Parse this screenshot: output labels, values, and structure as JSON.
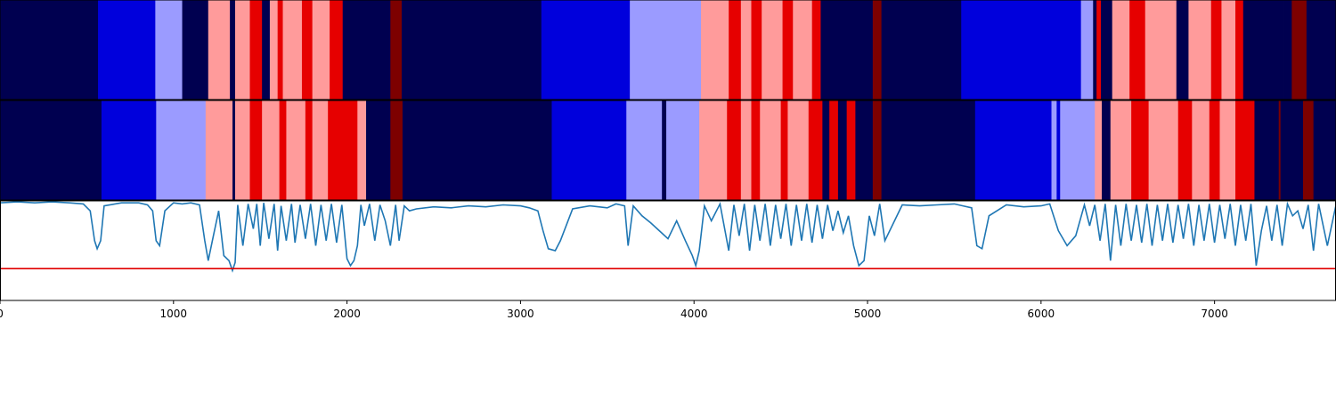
{
  "chart_data": {
    "type": "heatmap",
    "title": "",
    "xlabel": "",
    "ylabel": "",
    "xlim": [
      0,
      7700
    ],
    "xticks": [
      "0",
      "1000",
      "2000",
      "3000",
      "4000",
      "5000",
      "6000",
      "7000"
    ],
    "xtick_values": [
      0,
      1000,
      2000,
      3000,
      4000,
      5000,
      6000,
      7000
    ],
    "palette": [
      "#000050",
      "#0000dc",
      "#9b9bff",
      "#ff9b9b",
      "#e60000",
      "#7d0000"
    ],
    "tracks": [
      {
        "segments": [
          [
            0,
            565,
            0
          ],
          [
            565,
            895,
            1
          ],
          [
            895,
            1050,
            2
          ],
          [
            1050,
            1200,
            0
          ],
          [
            1200,
            1325,
            3
          ],
          [
            1325,
            1355,
            0
          ],
          [
            1355,
            1440,
            3
          ],
          [
            1440,
            1510,
            4
          ],
          [
            1510,
            1555,
            0
          ],
          [
            1555,
            1600,
            3
          ],
          [
            1600,
            1630,
            4
          ],
          [
            1630,
            1740,
            3
          ],
          [
            1740,
            1800,
            4
          ],
          [
            1800,
            1900,
            3
          ],
          [
            1900,
            1975,
            4
          ],
          [
            1975,
            2250,
            0
          ],
          [
            2250,
            2315,
            5
          ],
          [
            2315,
            3120,
            0
          ],
          [
            3120,
            3630,
            1
          ],
          [
            3630,
            4040,
            2
          ],
          [
            4040,
            4200,
            3
          ],
          [
            4200,
            4270,
            4
          ],
          [
            4270,
            4330,
            3
          ],
          [
            4330,
            4390,
            4
          ],
          [
            4390,
            4510,
            3
          ],
          [
            4510,
            4570,
            4
          ],
          [
            4570,
            4680,
            3
          ],
          [
            4680,
            4730,
            4
          ],
          [
            4730,
            5030,
            0
          ],
          [
            5030,
            5080,
            5
          ],
          [
            5080,
            5540,
            0
          ],
          [
            5540,
            6230,
            1
          ],
          [
            6230,
            6300,
            2
          ],
          [
            6300,
            6320,
            0
          ],
          [
            6320,
            6345,
            4
          ],
          [
            6345,
            6410,
            0
          ],
          [
            6410,
            6510,
            3
          ],
          [
            6510,
            6600,
            4
          ],
          [
            6600,
            6780,
            3
          ],
          [
            6780,
            6850,
            0
          ],
          [
            6850,
            6980,
            3
          ],
          [
            6980,
            7040,
            4
          ],
          [
            7040,
            7120,
            3
          ],
          [
            7120,
            7165,
            4
          ],
          [
            7165,
            7350,
            0
          ],
          [
            7350,
            7400,
            0
          ],
          [
            7400,
            7445,
            0
          ],
          [
            7445,
            7530,
            5
          ],
          [
            7530,
            7700,
            0
          ]
        ]
      },
      {
        "segments": [
          [
            0,
            585,
            0
          ],
          [
            585,
            900,
            1
          ],
          [
            900,
            1185,
            2
          ],
          [
            1185,
            1340,
            3
          ],
          [
            1340,
            1355,
            0
          ],
          [
            1355,
            1440,
            3
          ],
          [
            1440,
            1510,
            4
          ],
          [
            1510,
            1610,
            3
          ],
          [
            1610,
            1650,
            4
          ],
          [
            1650,
            1760,
            3
          ],
          [
            1760,
            1800,
            4
          ],
          [
            1800,
            1890,
            3
          ],
          [
            1890,
            2060,
            4
          ],
          [
            2060,
            2110,
            3
          ],
          [
            2110,
            2250,
            0
          ],
          [
            2250,
            2320,
            5
          ],
          [
            2320,
            3180,
            0
          ],
          [
            3180,
            3610,
            1
          ],
          [
            3610,
            3815,
            2
          ],
          [
            3815,
            3840,
            0
          ],
          [
            3840,
            4030,
            2
          ],
          [
            4030,
            4190,
            3
          ],
          [
            4190,
            4270,
            4
          ],
          [
            4270,
            4330,
            3
          ],
          [
            4330,
            4380,
            4
          ],
          [
            4380,
            4500,
            3
          ],
          [
            4500,
            4540,
            4
          ],
          [
            4540,
            4660,
            3
          ],
          [
            4660,
            4740,
            4
          ],
          [
            4740,
            4780,
            0
          ],
          [
            4780,
            4830,
            4
          ],
          [
            4830,
            4880,
            0
          ],
          [
            4880,
            4930,
            4
          ],
          [
            4930,
            5030,
            0
          ],
          [
            5030,
            5080,
            5
          ],
          [
            5080,
            5620,
            0
          ],
          [
            5620,
            6060,
            1
          ],
          [
            6060,
            6090,
            2
          ],
          [
            6090,
            6110,
            1
          ],
          [
            6110,
            6310,
            2
          ],
          [
            6310,
            6350,
            3
          ],
          [
            6350,
            6400,
            0
          ],
          [
            6400,
            6520,
            3
          ],
          [
            6520,
            6620,
            4
          ],
          [
            6620,
            6790,
            3
          ],
          [
            6790,
            6870,
            4
          ],
          [
            6870,
            6970,
            3
          ],
          [
            6970,
            7030,
            4
          ],
          [
            7030,
            7120,
            3
          ],
          [
            7120,
            7170,
            4
          ],
          [
            7170,
            7230,
            4
          ],
          [
            7230,
            7370,
            0
          ],
          [
            7370,
            7380,
            5
          ],
          [
            7380,
            7510,
            0
          ],
          [
            7510,
            7570,
            5
          ],
          [
            7570,
            7700,
            0
          ]
        ]
      }
    ],
    "line_series": {
      "color": "#1f77b4",
      "ylim": [
        0,
        1
      ],
      "x": [
        0,
        100,
        200,
        300,
        400,
        480,
        520,
        545,
        560,
        580,
        600,
        700,
        800,
        850,
        880,
        900,
        920,
        950,
        1000,
        1050,
        1100,
        1150,
        1180,
        1200,
        1230,
        1260,
        1290,
        1320,
        1340,
        1355,
        1370,
        1400,
        1430,
        1460,
        1480,
        1500,
        1520,
        1550,
        1580,
        1600,
        1620,
        1650,
        1680,
        1700,
        1730,
        1760,
        1790,
        1820,
        1850,
        1880,
        1910,
        1940,
        1970,
        2000,
        2020,
        2040,
        2060,
        2080,
        2100,
        2130,
        2160,
        2190,
        2220,
        2250,
        2280,
        2300,
        2330,
        2360,
        2400,
        2500,
        2600,
        2700,
        2800,
        2900,
        3000,
        3050,
        3100,
        3130,
        3160,
        3200,
        3230,
        3300,
        3400,
        3500,
        3550,
        3600,
        3620,
        3650,
        3700,
        3750,
        3800,
        3850,
        3900,
        3950,
        3990,
        4010,
        4030,
        4060,
        4100,
        4150,
        4200,
        4230,
        4260,
        4290,
        4320,
        4350,
        4380,
        4410,
        4440,
        4470,
        4500,
        4530,
        4560,
        4590,
        4620,
        4650,
        4680,
        4710,
        4740,
        4770,
        4800,
        4830,
        4860,
        4890,
        4920,
        4950,
        4980,
        5010,
        5040,
        5070,
        5100,
        5200,
        5300,
        5400,
        5500,
        5550,
        5600,
        5630,
        5660,
        5700,
        5800,
        5900,
        6000,
        6050,
        6100,
        6150,
        6200,
        6250,
        6280,
        6310,
        6340,
        6370,
        6400,
        6430,
        6460,
        6490,
        6520,
        6550,
        6580,
        6610,
        6640,
        6670,
        6700,
        6730,
        6760,
        6790,
        6820,
        6850,
        6880,
        6910,
        6940,
        6970,
        7000,
        7030,
        7060,
        7090,
        7120,
        7150,
        7180,
        7210,
        7240,
        7270,
        7300,
        7330,
        7360,
        7390,
        7420,
        7450,
        7480,
        7510,
        7540,
        7570,
        7600,
        7650,
        7700
      ],
      "y": [
        0.98,
        0.99,
        0.98,
        0.99,
        0.98,
        0.97,
        0.9,
        0.6,
        0.52,
        0.6,
        0.95,
        0.98,
        0.98,
        0.96,
        0.9,
        0.6,
        0.55,
        0.9,
        0.98,
        0.97,
        0.98,
        0.96,
        0.6,
        0.4,
        0.65,
        0.9,
        0.45,
        0.4,
        0.3,
        0.38,
        0.96,
        0.55,
        0.97,
        0.72,
        0.97,
        0.55,
        0.98,
        0.62,
        0.97,
        0.5,
        0.95,
        0.6,
        0.97,
        0.58,
        0.96,
        0.62,
        0.97,
        0.55,
        0.96,
        0.6,
        0.97,
        0.58,
        0.96,
        0.42,
        0.35,
        0.4,
        0.55,
        0.96,
        0.75,
        0.97,
        0.6,
        0.96,
        0.8,
        0.55,
        0.96,
        0.6,
        0.95,
        0.9,
        0.92,
        0.94,
        0.93,
        0.95,
        0.94,
        0.96,
        0.95,
        0.93,
        0.9,
        0.7,
        0.52,
        0.5,
        0.6,
        0.92,
        0.95,
        0.93,
        0.97,
        0.95,
        0.55,
        0.95,
        0.85,
        0.78,
        0.7,
        0.62,
        0.8,
        0.6,
        0.45,
        0.35,
        0.5,
        0.95,
        0.8,
        0.97,
        0.5,
        0.96,
        0.65,
        0.97,
        0.5,
        0.96,
        0.6,
        0.97,
        0.55,
        0.96,
        0.62,
        0.97,
        0.55,
        0.96,
        0.6,
        0.97,
        0.58,
        0.96,
        0.62,
        0.96,
        0.7,
        0.9,
        0.68,
        0.85,
        0.55,
        0.35,
        0.4,
        0.85,
        0.65,
        0.97,
        0.6,
        0.96,
        0.95,
        0.96,
        0.97,
        0.95,
        0.93,
        0.55,
        0.52,
        0.85,
        0.96,
        0.94,
        0.95,
        0.97,
        0.7,
        0.55,
        0.65,
        0.96,
        0.75,
        0.96,
        0.6,
        0.97,
        0.4,
        0.96,
        0.55,
        0.97,
        0.6,
        0.96,
        0.58,
        0.97,
        0.55,
        0.96,
        0.6,
        0.97,
        0.58,
        0.96,
        0.62,
        0.97,
        0.55,
        0.96,
        0.6,
        0.97,
        0.58,
        0.96,
        0.62,
        0.97,
        0.55,
        0.96,
        0.6,
        0.97,
        0.35,
        0.7,
        0.95,
        0.6,
        0.96,
        0.55,
        0.97,
        0.85,
        0.9,
        0.72,
        0.96,
        0.5,
        0.97,
        0.55,
        0.96,
        0.9,
        0.97
      ]
    },
    "threshold": {
      "y": 0.32,
      "color": "#e00000"
    }
  }
}
